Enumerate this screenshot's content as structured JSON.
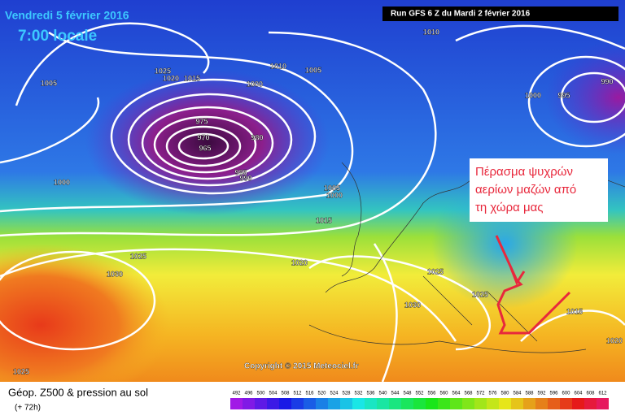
{
  "header": {
    "date": "Vendredi 5 février 2016",
    "time": "7:00 locale",
    "run": "Run GFS 6 Z du Mardi 2 février 2016"
  },
  "isobar_labels": [
    "1005",
    "1025",
    "1020",
    "1015",
    "1010",
    "1005",
    "1000",
    "975",
    "970",
    "965",
    "980",
    "985",
    "990",
    "1000",
    "1005",
    "1000",
    "1015",
    "1025",
    "1030",
    "1020",
    "1025",
    "1025",
    "1030",
    "1015",
    "1020",
    "1025",
    "1010",
    "990",
    "1000",
    "995"
  ],
  "annotation": {
    "lines": [
      "Πέρασμα ψυχρών",
      "αερίων μαζών από",
      "τη χώρα μας"
    ]
  },
  "copyright": "Copyright © 2015 Meteociel.fr",
  "footer": {
    "title": "Géop. Z500 & pression au sol",
    "lead": "(+ 72h)"
  },
  "scale": [
    492,
    496,
    500,
    504,
    508,
    512,
    516,
    520,
    524,
    528,
    532,
    536,
    540,
    544,
    548,
    552,
    556,
    560,
    564,
    568,
    572,
    576,
    580,
    584,
    588,
    592,
    596,
    600,
    604,
    608,
    612
  ]
}
